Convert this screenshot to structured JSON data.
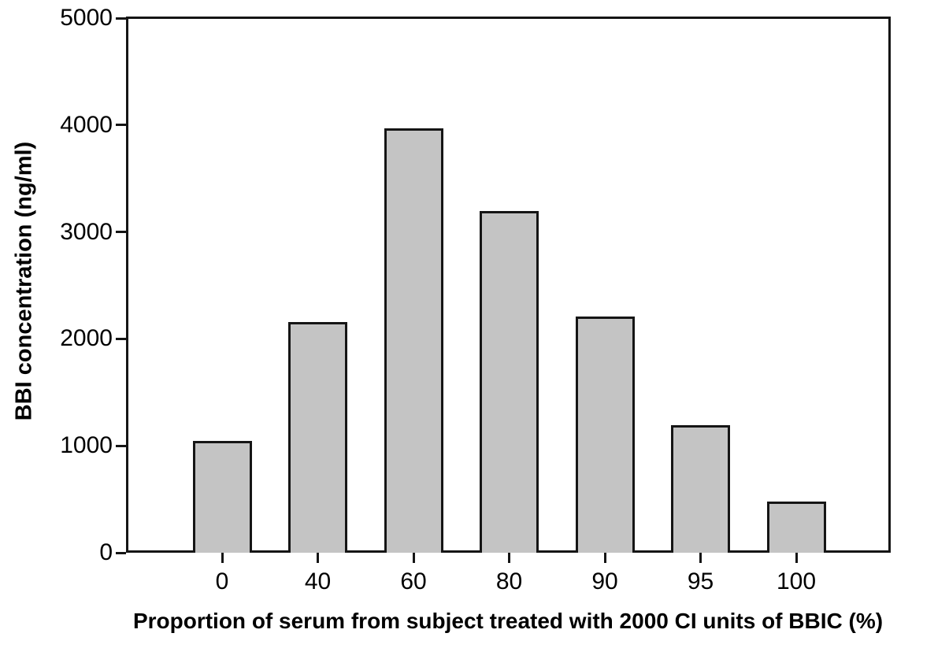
{
  "figure": {
    "background_color": "#ffffff",
    "axis_color": "#151515",
    "text_color": "#000000"
  },
  "chart_data": {
    "type": "bar",
    "title": "",
    "xlabel": "Proportion of serum from subject treated with 2000 CI units of BBIC (%)",
    "ylabel": "BBI concentration (ng/ml)",
    "categories": [
      "0",
      "40",
      "60",
      "80",
      "90",
      "95",
      "100"
    ],
    "values": [
      1045,
      2160,
      3970,
      3195,
      2210,
      1190,
      475
    ],
    "ylim": [
      0,
      5000
    ],
    "yticks": [
      0,
      1000,
      2000,
      3000,
      4000,
      5000
    ],
    "ytick_labels": [
      "0",
      "1000",
      "2000",
      "3000",
      "4000",
      "5000"
    ],
    "grid": false,
    "legend": null,
    "frame": "box",
    "bar_fill_color": "#c4c4c4",
    "bar_edge_color": "#151515"
  }
}
